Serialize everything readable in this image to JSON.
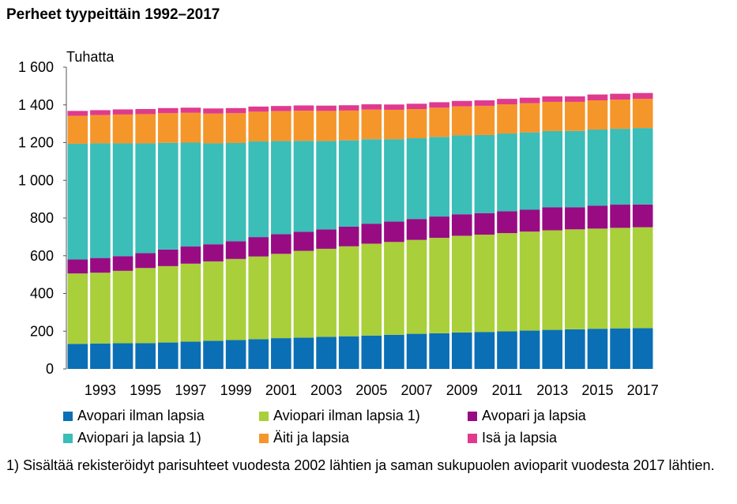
{
  "title": "Perheet tyypeittäin 1992–2017",
  "footnote": "1) Sisältää rekisteröidyt parisuhteet vuodesta 2002 lähtien ja saman sukupuolen avioparit vuodesta 2017 lähtien.",
  "chart_data": {
    "type": "bar",
    "stacked": true,
    "title": "Perheet tyypeittäin 1992–2017",
    "ylabel": "Tuhatta",
    "xlabel": "",
    "ylim": [
      0,
      1600
    ],
    "yticks": [
      0,
      200,
      400,
      600,
      800,
      1000,
      1200,
      1400,
      1600
    ],
    "ytick_labels": [
      "0",
      "200",
      "400",
      "600",
      "800",
      "1 000",
      "1 200",
      "1 400",
      "1 600"
    ],
    "categories": [
      "1992",
      "1993",
      "1994",
      "1995",
      "1996",
      "1997",
      "1998",
      "1999",
      "2000",
      "2001",
      "2002",
      "2003",
      "2004",
      "2005",
      "2006",
      "2007",
      "2008",
      "2009",
      "2010",
      "2011",
      "2012",
      "2013",
      "2014",
      "2015",
      "2016",
      "2017"
    ],
    "xtick_labels": [
      "1993",
      "1995",
      "1997",
      "1999",
      "2001",
      "2003",
      "2005",
      "2007",
      "2009",
      "2011",
      "2013",
      "2015",
      "2017"
    ],
    "grid": false,
    "legend_position": "bottom",
    "series": [
      {
        "name": "Avopari ilman lapsia",
        "color": "#0b6fb5",
        "values": [
          133,
          135,
          136,
          137,
          140,
          145,
          149,
          153,
          158,
          163,
          166,
          170,
          173,
          177,
          181,
          186,
          189,
          193,
          196,
          199,
          203,
          207,
          210,
          213,
          215,
          216
        ]
      },
      {
        "name": "Aviopari ilman lapsia 1)",
        "color": "#a9cf3a",
        "values": [
          373,
          375,
          384,
          398,
          405,
          413,
          421,
          430,
          438,
          447,
          460,
          467,
          477,
          487,
          492,
          498,
          506,
          513,
          516,
          521,
          525,
          528,
          530,
          531,
          533,
          535
        ]
      },
      {
        "name": "Avopari ja lapsia",
        "color": "#990b83",
        "values": [
          74,
          78,
          78,
          79,
          88,
          91,
          91,
          94,
          103,
          104,
          101,
          103,
          104,
          106,
          108,
          111,
          113,
          114,
          114,
          116,
          116,
          122,
          117,
          121,
          123,
          121
        ]
      },
      {
        "name": "Aviopari ja lapsia 1)",
        "color": "#3bbdb8",
        "values": [
          614,
          608,
          598,
          582,
          566,
          551,
          535,
          521,
          507,
          494,
          482,
          468,
          458,
          448,
          437,
          428,
          422,
          418,
          414,
          412,
          410,
          404,
          405,
          404,
          402,
          405
        ]
      },
      {
        "name": "Äiti ja lapsia",
        "color": "#f5962a",
        "values": [
          148,
          150,
          153,
          155,
          157,
          158,
          158,
          158,
          158,
          159,
          160,
          160,
          158,
          157,
          156,
          155,
          155,
          154,
          155,
          155,
          155,
          155,
          154,
          155,
          155,
          155
        ]
      },
      {
        "name": "Isä ja lapsia",
        "color": "#e03a8e",
        "values": [
          26,
          26,
          27,
          27,
          27,
          27,
          27,
          27,
          27,
          27,
          28,
          28,
          28,
          28,
          28,
          28,
          29,
          29,
          29,
          29,
          29,
          29,
          29,
          31,
          31,
          31
        ]
      }
    ]
  }
}
